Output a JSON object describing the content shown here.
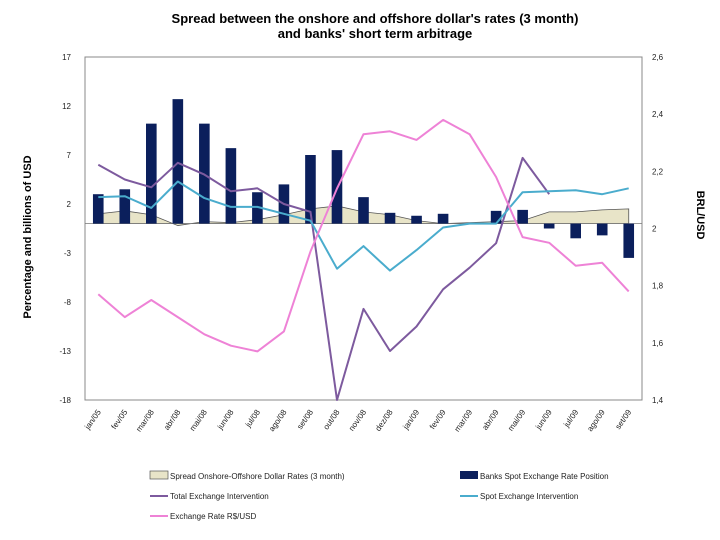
{
  "chart_data": {
    "type": "bar",
    "title_lines": [
      "Spread between the onshore  and offshore dollar's rates (3 month)",
      "and banks' short term arbitrage"
    ],
    "ylabel_left": "Percentage and billions of USD",
    "ylabel_right": "BRL/USD",
    "ylim_left": [
      -18,
      17
    ],
    "yticks_left": [
      "17",
      "12",
      "7",
      "2",
      "-3",
      "-8",
      "-13",
      "-18"
    ],
    "ylim_right": [
      1.4,
      2.6
    ],
    "yticks_right": [
      "2,6",
      "2,4",
      "2,2",
      "2",
      "1,8",
      "1,6",
      "1,4"
    ],
    "categories": [
      "jan/05",
      "fev/05",
      "mar/08",
      "abr/08",
      "mai/08",
      "jun/08",
      "jul/08",
      "ago/08",
      "set/08",
      "out/08",
      "nov/08",
      "dez/08",
      "jan/09",
      "fev/09",
      "mar/09",
      "abr/09",
      "mai/09",
      "jun/09",
      "jul/09",
      "ago/09",
      "set/09"
    ],
    "series": [
      {
        "name": "Spread Onshore-Offshore Dollar Rates (3 month)",
        "kind": "area",
        "axis": "left",
        "color": "#e8e4c8",
        "values": [
          1.0,
          1.3,
          0.9,
          -0.2,
          0.2,
          0.1,
          0.4,
          0.9,
          1.5,
          1.8,
          1.2,
          0.9,
          0.3,
          0.0,
          0.1,
          0.2,
          0.3,
          1.2,
          1.2,
          1.4,
          1.5
        ]
      },
      {
        "name": "Banks Spot Exchange Rate Position",
        "kind": "bar",
        "axis": "left",
        "color": "#0b1f5c",
        "values": [
          3.0,
          3.5,
          10.2,
          12.7,
          10.2,
          7.7,
          3.2,
          4.0,
          7.0,
          7.5,
          2.7,
          1.1,
          0.8,
          1.0,
          0.0,
          1.3,
          1.4,
          -0.5,
          -1.5,
          -1.2,
          -3.5
        ]
      },
      {
        "name": "Total Exchange Intervention",
        "kind": "line",
        "axis": "left",
        "color": "#7d5a9e",
        "values": [
          6.0,
          4.5,
          3.7,
          6.2,
          5.0,
          3.3,
          3.6,
          2.0,
          1.2,
          -18.0,
          -8.7,
          -13.0,
          -10.5,
          -6.7,
          -4.5,
          -2.0,
          6.7,
          3.0,
          null,
          null,
          null
        ]
      },
      {
        "name": "Spot Exchange Intervention",
        "kind": "line",
        "axis": "left",
        "color": "#4aaccd",
        "values": [
          2.7,
          2.8,
          1.6,
          4.3,
          2.6,
          1.7,
          1.7,
          1.0,
          0.3,
          -4.6,
          -2.3,
          -4.8,
          -2.7,
          -0.4,
          0.0,
          0.0,
          3.2,
          3.3,
          3.4,
          3.0,
          3.6
        ]
      },
      {
        "name": "Exchange Rate R$/USD",
        "kind": "line",
        "axis": "right",
        "color": "#ee82d6",
        "values": [
          1.77,
          1.69,
          1.75,
          1.69,
          1.63,
          1.59,
          1.57,
          1.64,
          1.92,
          2.14,
          2.33,
          2.34,
          2.31,
          2.38,
          2.33,
          2.18,
          1.97,
          1.95,
          1.87,
          1.88,
          1.78
        ]
      }
    ],
    "legend": [
      {
        "label": "Spread Onshore-Offshore Dollar Rates (3 month)",
        "swatch": "area"
      },
      {
        "label": "Banks Spot Exchange Rate Position",
        "swatch": "bar"
      },
      {
        "label": "Total Exchange Intervention",
        "swatch": "line-purple"
      },
      {
        "label": "Spot Exchange Intervention",
        "swatch": "line-blue"
      },
      {
        "label": "Exchange Rate R$/USD",
        "swatch": "line-pink"
      }
    ],
    "colors": {
      "frame": "#888888",
      "zero_line": "#777777"
    }
  }
}
